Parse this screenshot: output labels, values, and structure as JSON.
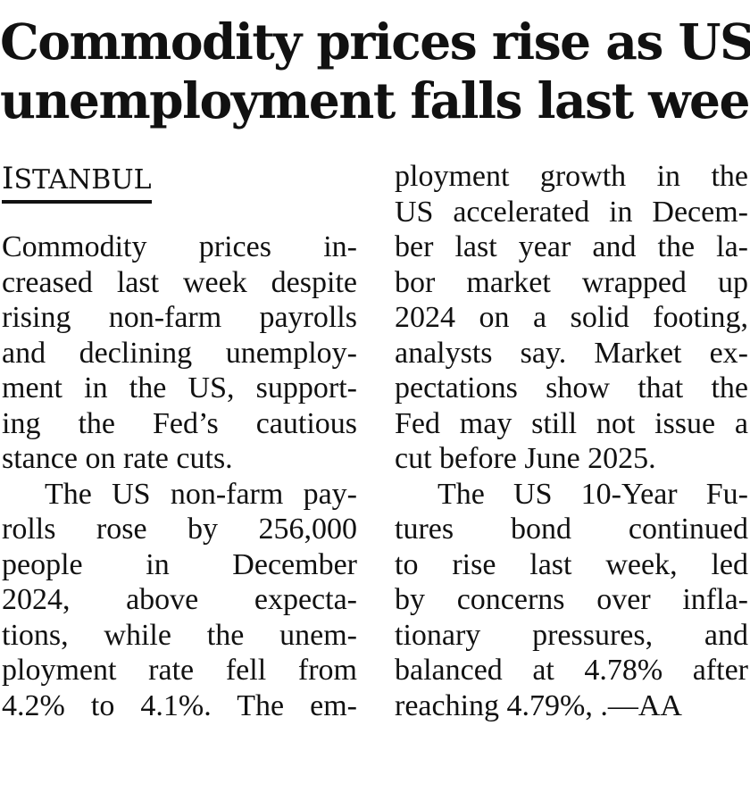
{
  "article": {
    "headline_lines": [
      "Commodity prices rise as US",
      "unemployment falls last week"
    ],
    "dateline_initial": "I",
    "dateline_rest": "STANBUL",
    "left_column_lines": [
      "Commodity prices in-",
      "creased last week despite",
      "rising non-farm payrolls",
      "and declining unemploy-",
      "ment in the US, support-",
      "ing the Fed’s cautious",
      "stance on rate cuts.",
      "The US non-farm pay-",
      "rolls rose by 256,000",
      "people in December",
      "2024, above expecta-",
      "tions, while the unem-",
      "ployment rate fell from",
      "4.2% to 4.1%. The em-"
    ],
    "right_column_lines": [
      "ployment growth in the",
      "US accelerated in Decem-",
      "ber last year and the la-",
      "bor market wrapped up",
      "2024 on a solid footing,",
      "analysts say. Market ex-",
      "pectations show that the",
      "Fed may still not issue a",
      "cut before June 2025.",
      "The US 10-Year Fu-",
      "tures bond continued",
      "to rise last week, led",
      "by concerns over infla-",
      "tionary pressures, and",
      "balanced at 4.78% after",
      "reaching 4.79%, .—AA"
    ]
  }
}
